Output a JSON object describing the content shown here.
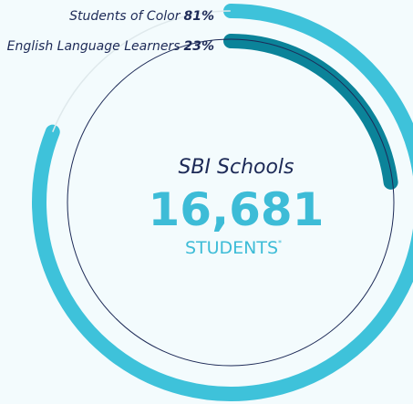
{
  "chart_data": {
    "type": "radial-bar",
    "title": "SBI Schools",
    "total": "16,681",
    "unit": "STUDENTS",
    "footnote_mark": "*",
    "ylim": [
      0,
      100
    ],
    "series": [
      {
        "name": "Students of Color",
        "color": "#3ec2da",
        "values": [
          81
        ],
        "value_labels": [
          "81%"
        ]
      },
      {
        "name": "English Language Learners",
        "color": "#0b8399",
        "values": [
          23
        ],
        "value_labels": [
          "23%"
        ]
      }
    ]
  }
}
